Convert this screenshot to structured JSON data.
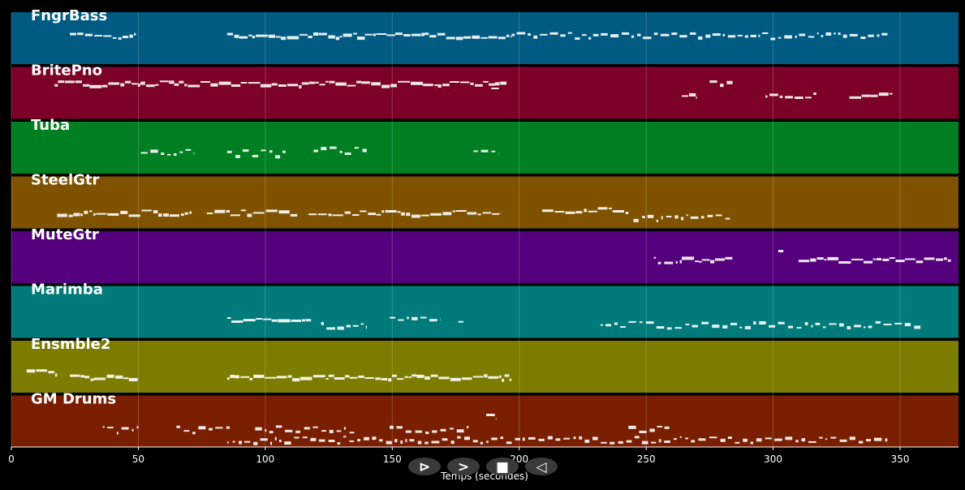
{
  "chart_data": {
    "type": "piano-roll",
    "xlabel": "Temps (secondes)",
    "xlim": [
      0,
      373
    ],
    "xticks": [
      0,
      50,
      100,
      150,
      200,
      250,
      300,
      350
    ],
    "grid": true,
    "tracks": [
      {
        "name": "FngrBass",
        "color": "#005a82",
        "notes": [
          [
            23,
            49,
            0.25,
            0.85
          ],
          [
            85,
            197,
            0.25,
            1.0
          ],
          [
            197,
            345,
            0.25,
            0.6
          ]
        ]
      },
      {
        "name": "BritePno",
        "color": "#7c0028",
        "notes": [
          [
            17,
            195,
            0.12,
            1.0
          ],
          [
            189,
            192,
            0.18,
            1.0
          ],
          [
            264,
            270,
            0.35,
            1.0
          ],
          [
            275,
            284,
            0.12,
            0.6
          ],
          [
            297,
            317,
            0.35,
            0.7
          ],
          [
            330,
            347,
            0.35,
            1.0
          ]
        ]
      },
      {
        "name": "Tuba",
        "color": "#007f22",
        "notes": [
          [
            51,
            72,
            0.4,
            0.5
          ],
          [
            85,
            108,
            0.4,
            0.5
          ],
          [
            119,
            140,
            0.35,
            0.5
          ],
          [
            182,
            192,
            0.4,
            0.5
          ]
        ]
      },
      {
        "name": "SteelGtr",
        "color": "#7f5200",
        "notes": [
          [
            18,
            71,
            0.5,
            0.9
          ],
          [
            77,
            113,
            0.5,
            0.9
          ],
          [
            117,
            193,
            0.5,
            0.9
          ],
          [
            209,
            243,
            0.45,
            0.9
          ],
          [
            245,
            283,
            0.6,
            0.5
          ]
        ]
      },
      {
        "name": "MuteGtr",
        "color": "#55007c",
        "notes": [
          [
            253,
            264,
            0.35,
            0.6
          ],
          [
            264,
            284,
            0.35,
            1.0
          ],
          [
            302,
            304,
            0.2,
            0.6
          ],
          [
            310,
            370,
            0.35,
            1.0
          ]
        ]
      },
      {
        "name": "Marimba",
        "color": "#007a7a",
        "notes": [
          [
            85,
            118,
            0.45,
            1.0
          ],
          [
            122,
            140,
            0.55,
            0.6
          ],
          [
            149,
            169,
            0.45,
            0.6
          ],
          [
            176,
            178,
            0.45,
            0.6
          ],
          [
            232,
            358,
            0.55,
            0.5
          ]
        ]
      },
      {
        "name": "Ensmble2",
        "color": "#7c7c00",
        "notes": [
          [
            6,
            18,
            0.4,
            1.0
          ],
          [
            23,
            50,
            0.5,
            1.0
          ],
          [
            85,
            197,
            0.5,
            1.0
          ]
        ]
      },
      {
        "name": "GM Drums",
        "color": "#7a1e00",
        "notes": [
          [
            36,
            50,
            0.45,
            0.45
          ],
          [
            65,
            86,
            0.45,
            0.45
          ],
          [
            96,
            135,
            0.45,
            0.45
          ],
          [
            149,
            180,
            0.45,
            0.45
          ],
          [
            187,
            191,
            0.2,
            0.9
          ],
          [
            243,
            260,
            0.45,
            0.6
          ],
          [
            85,
            345,
            0.65,
            0.5
          ]
        ]
      }
    ]
  },
  "controls": [
    {
      "name": "play-outline-button",
      "glyph": "⊳"
    },
    {
      "name": "play-button",
      "glyph": ">"
    },
    {
      "name": "stop-button",
      "glyph": "■"
    },
    {
      "name": "rewind-button",
      "glyph": "◁"
    }
  ]
}
